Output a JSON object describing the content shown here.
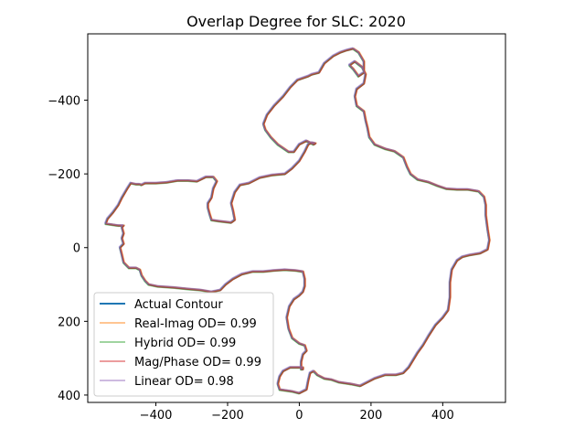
{
  "chart_data": {
    "type": "line",
    "title": "Overlap Degree for SLC: 2020",
    "xlabel": "",
    "ylabel": "",
    "xlim": [
      -590,
      575
    ],
    "ylim": [
      420,
      -580
    ],
    "y_inverted": true,
    "xticks": [
      -400,
      -200,
      0,
      200,
      400
    ],
    "xtick_labels": [
      "−400",
      "−200",
      "0",
      "200",
      "400"
    ],
    "yticks": [
      -400,
      -200,
      0,
      200,
      400
    ],
    "ytick_labels": [
      "−400",
      "−200",
      "0",
      "200",
      "400"
    ],
    "grid": false,
    "legend_position": "lower-left",
    "series": [
      {
        "name": "Actual Contour",
        "color": "#1f77b4",
        "offset": [
          0,
          0
        ],
        "points": [
          [
            130,
            -535
          ],
          [
            150,
            -540
          ],
          [
            165,
            -530
          ],
          [
            180,
            -505
          ],
          [
            180,
            -475
          ],
          [
            165,
            -465
          ],
          [
            150,
            -485
          ],
          [
            140,
            -495
          ],
          [
            155,
            -505
          ],
          [
            175,
            -490
          ],
          [
            185,
            -470
          ],
          [
            180,
            -445
          ],
          [
            160,
            -430
          ],
          [
            155,
            -410
          ],
          [
            160,
            -385
          ],
          [
            180,
            -370
          ],
          [
            185,
            -345
          ],
          [
            190,
            -325
          ],
          [
            195,
            -300
          ],
          [
            210,
            -280
          ],
          [
            240,
            -268
          ],
          [
            265,
            -262
          ],
          [
            290,
            -245
          ],
          [
            300,
            -220
          ],
          [
            310,
            -200
          ],
          [
            330,
            -185
          ],
          [
            360,
            -178
          ],
          [
            385,
            -168
          ],
          [
            410,
            -160
          ],
          [
            440,
            -158
          ],
          [
            470,
            -158
          ],
          [
            500,
            -153
          ],
          [
            515,
            -138
          ],
          [
            520,
            -115
          ],
          [
            520,
            -88
          ],
          [
            525,
            -50
          ],
          [
            530,
            -20
          ],
          [
            525,
            5
          ],
          [
            505,
            15
          ],
          [
            475,
            20
          ],
          [
            455,
            25
          ],
          [
            440,
            35
          ],
          [
            425,
            60
          ],
          [
            420,
            95
          ],
          [
            420,
            135
          ],
          [
            415,
            170
          ],
          [
            400,
            190
          ],
          [
            380,
            210
          ],
          [
            360,
            240
          ],
          [
            345,
            265
          ],
          [
            330,
            285
          ],
          [
            305,
            325
          ],
          [
            290,
            340
          ],
          [
            270,
            345
          ],
          [
            240,
            345
          ],
          [
            210,
            355
          ],
          [
            190,
            365
          ],
          [
            170,
            375
          ],
          [
            145,
            370
          ],
          [
            110,
            365
          ],
          [
            90,
            358
          ],
          [
            70,
            355
          ],
          [
            50,
            345
          ],
          [
            40,
            335
          ],
          [
            30,
            340
          ],
          [
            25,
            360
          ],
          [
            20,
            385
          ],
          [
            0,
            395
          ],
          [
            -20,
            390
          ],
          [
            -55,
            385
          ],
          [
            -60,
            370
          ],
          [
            -55,
            350
          ],
          [
            -45,
            335
          ],
          [
            -25,
            325
          ],
          [
            0,
            325
          ],
          [
            10,
            325
          ],
          [
            10,
            330
          ],
          [
            5,
            330
          ],
          [
            5,
            310
          ],
          [
            10,
            290
          ],
          [
            20,
            280
          ],
          [
            15,
            265
          ],
          [
            0,
            260
          ],
          [
            -20,
            245
          ],
          [
            -30,
            220
          ],
          [
            -35,
            190
          ],
          [
            -28,
            160
          ],
          [
            -15,
            140
          ],
          [
            0,
            130
          ],
          [
            10,
            120
          ],
          [
            15,
            105
          ],
          [
            15,
            85
          ],
          [
            10,
            65
          ],
          [
            -10,
            62
          ],
          [
            -40,
            60
          ],
          [
            -70,
            62
          ],
          [
            -100,
            65
          ],
          [
            -130,
            65
          ],
          [
            -160,
            72
          ],
          [
            -185,
            85
          ],
          [
            -205,
            100
          ],
          [
            -220,
            115
          ],
          [
            -245,
            120
          ],
          [
            -275,
            115
          ],
          [
            -310,
            112
          ],
          [
            -350,
            108
          ],
          [
            -395,
            105
          ],
          [
            -420,
            100
          ],
          [
            -430,
            90
          ],
          [
            -440,
            75
          ],
          [
            -445,
            60
          ],
          [
            -455,
            55
          ],
          [
            -475,
            55
          ],
          [
            -490,
            40
          ],
          [
            -495,
            20
          ],
          [
            -500,
            0
          ],
          [
            -490,
            -10
          ],
          [
            -495,
            -25
          ],
          [
            -490,
            -38
          ],
          [
            -495,
            -55
          ],
          [
            -490,
            -60
          ],
          [
            -505,
            -60
          ],
          [
            -540,
            -65
          ],
          [
            -535,
            -78
          ],
          [
            -520,
            -95
          ],
          [
            -505,
            -115
          ],
          [
            -495,
            -135
          ],
          [
            -480,
            -160
          ],
          [
            -470,
            -175
          ],
          [
            -455,
            -172
          ],
          [
            -445,
            -172
          ],
          [
            -440,
            -170
          ],
          [
            -430,
            -175
          ],
          [
            -400,
            -175
          ],
          [
            -370,
            -177
          ],
          [
            -340,
            -182
          ],
          [
            -310,
            -182
          ],
          [
            -285,
            -180
          ],
          [
            -260,
            -192
          ],
          [
            -240,
            -192
          ],
          [
            -230,
            -180
          ],
          [
            -240,
            -160
          ],
          [
            -245,
            -135
          ],
          [
            -255,
            -120
          ],
          [
            -255,
            -108
          ],
          [
            -250,
            -90
          ],
          [
            -245,
            -75
          ],
          [
            -225,
            -72
          ],
          [
            -190,
            -68
          ],
          [
            -180,
            -75
          ],
          [
            -185,
            -100
          ],
          [
            -190,
            -120
          ],
          [
            -180,
            -150
          ],
          [
            -165,
            -170
          ],
          [
            -140,
            -175
          ],
          [
            -110,
            -190
          ],
          [
            -75,
            -197
          ],
          [
            -40,
            -200
          ],
          [
            -20,
            -215
          ],
          [
            0,
            -235
          ],
          [
            15,
            -260
          ],
          [
            25,
            -280
          ],
          [
            35,
            -285
          ],
          [
            45,
            -283
          ],
          [
            40,
            -280
          ],
          [
            20,
            -290
          ],
          [
            0,
            -280
          ],
          [
            -15,
            -260
          ],
          [
            -30,
            -260
          ],
          [
            -45,
            -270
          ],
          [
            -60,
            -280
          ],
          [
            -80,
            -300
          ],
          [
            -95,
            -320
          ],
          [
            -100,
            -335
          ],
          [
            -90,
            -360
          ],
          [
            -70,
            -385
          ],
          [
            -45,
            -410
          ],
          [
            -25,
            -435
          ],
          [
            -5,
            -455
          ],
          [
            25,
            -465
          ],
          [
            35,
            -470
          ],
          [
            55,
            -475
          ],
          [
            70,
            -500
          ],
          [
            95,
            -520
          ],
          [
            115,
            -530
          ],
          [
            130,
            -535
          ]
        ]
      },
      {
        "name": "Real-Imag OD= 0.99",
        "color": "#ff7f0e",
        "offset": [
          2,
          -1
        ]
      },
      {
        "name": "Hybrid OD= 0.99",
        "color": "#2ca02c",
        "offset": [
          -1,
          2
        ]
      },
      {
        "name": "Mag/Phase OD= 0.99",
        "color": "#d62728",
        "offset": [
          1,
          1
        ]
      },
      {
        "name": "Linear OD= 0.98",
        "color": "#9467bd",
        "offset": [
          -2,
          -2
        ]
      }
    ]
  }
}
